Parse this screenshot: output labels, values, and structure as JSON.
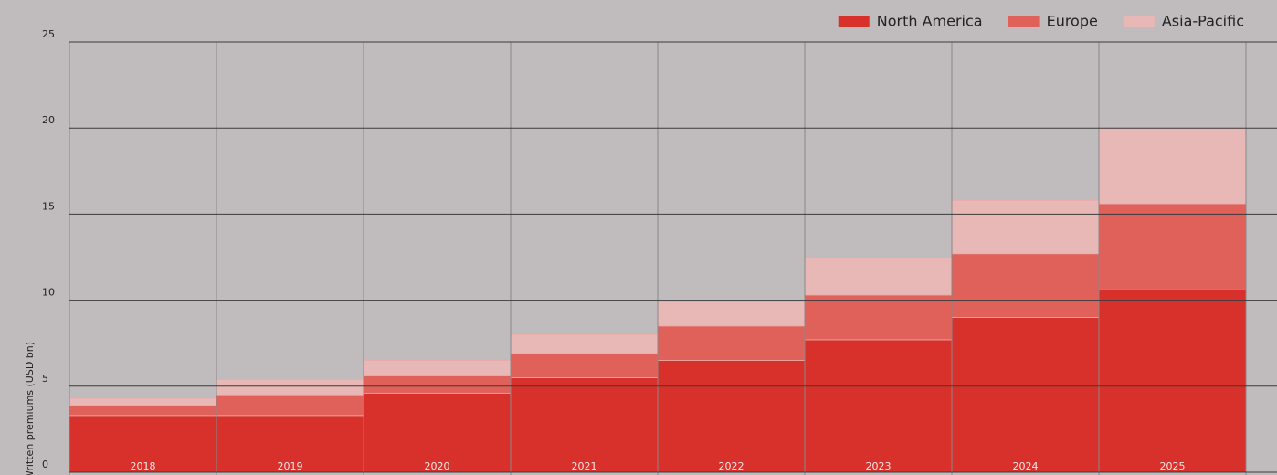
{
  "chart_data": {
    "type": "stacked_bar",
    "y_label": "Written premiums (USD bn)",
    "categories": [
      "2018",
      "2019",
      "2020",
      "2021",
      "2022",
      "2023",
      "2024",
      "2025"
    ],
    "series": [
      {
        "name": "North America",
        "color": "#d8312b",
        "values": [
          3.3,
          3.3,
          4.6,
          5.5,
          6.5,
          7.7,
          9.0,
          10.6
        ]
      },
      {
        "name": "Europe",
        "color": "#e0605a",
        "values": [
          0.6,
          1.2,
          1.0,
          1.4,
          2.0,
          2.6,
          3.7,
          5.0
        ]
      },
      {
        "name": "Asia-Pacific",
        "color": "#e8b8b6",
        "values": [
          0.4,
          0.9,
          0.9,
          1.1,
          1.4,
          2.2,
          3.1,
          4.4
        ]
      }
    ],
    "ylim": [
      0,
      25
    ],
    "yticks": [
      0,
      5,
      10,
      15,
      20,
      25
    ],
    "grid": true,
    "legend": "top-right"
  }
}
